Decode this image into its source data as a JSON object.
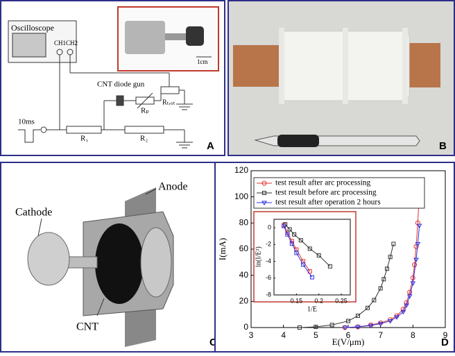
{
  "panels": {
    "a": {
      "label": "A",
      "oscilloscope": "Oscilloscope",
      "ch1": "CH1",
      "ch2": "CH2",
      "scale": "1cm",
      "gun": "CNT diode gun",
      "rp": "Rₚ",
      "rtest": "Rₜₑₛₜ",
      "pulse": "10ms",
      "r1": "R₁",
      "r2": "R₂"
    },
    "b": {
      "label": "B"
    },
    "c": {
      "label": "C",
      "anode": "Anode",
      "cathode": "Cathode",
      "cnt": "CNT"
    },
    "d": {
      "label": "D"
    }
  },
  "chart_data": {
    "type": "line",
    "xlabel": "E(V/μm)",
    "ylabel": "I(mA)",
    "xlim": [
      3,
      9
    ],
    "ylim": [
      0,
      120
    ],
    "xticks": [
      3,
      4,
      5,
      6,
      7,
      8,
      9
    ],
    "yticks": [
      0,
      20,
      40,
      60,
      80,
      100,
      120
    ],
    "series": [
      {
        "name": "test result after arc processing",
        "color": "#e03030",
        "marker": "circle",
        "x": [
          5.9,
          6.3,
          6.7,
          7.0,
          7.3,
          7.5,
          7.7,
          7.8,
          7.9,
          8.0,
          8.05,
          8.1,
          8.15,
          8.2
        ],
        "values": [
          0,
          0.5,
          2,
          3.5,
          6,
          9,
          14,
          19,
          27,
          38,
          48,
          62,
          80,
          104
        ]
      },
      {
        "name": "test result before arc processing",
        "color": "#303030",
        "marker": "square",
        "x": [
          4.5,
          5.0,
          5.5,
          6.0,
          6.3,
          6.6,
          6.8,
          7.0,
          7.1,
          7.2,
          7.3,
          7.4
        ],
        "values": [
          0,
          0.5,
          2,
          5,
          9,
          15,
          21,
          30,
          37,
          45,
          54,
          64
        ]
      },
      {
        "name": "test result after operation 2 hours",
        "color": "#3030e0",
        "marker": "triangle",
        "x": [
          5.9,
          6.3,
          6.7,
          7.0,
          7.3,
          7.5,
          7.7,
          7.8,
          7.9,
          8.0,
          8.1,
          8.15,
          8.2
        ],
        "values": [
          0,
          0.5,
          1.5,
          3,
          5,
          8,
          12,
          17,
          24,
          34,
          52,
          64,
          78
        ]
      }
    ],
    "inset": {
      "xlabel": "1/E",
      "ylabel": "ln(I/E²)",
      "xlim": [
        0.1,
        0.27
      ],
      "ylim": [
        -8,
        1
      ],
      "xticks": [
        0.15,
        0.2,
        0.25
      ],
      "yticks": [
        0,
        -2,
        -4,
        -6,
        -8
      ],
      "series": [
        {
          "color": "#e03030",
          "x": [
            0.122,
            0.13,
            0.14,
            0.15,
            0.165,
            0.18
          ],
          "values": [
            0.3,
            -0.6,
            -1.6,
            -2.6,
            -4,
            -5.2
          ]
        },
        {
          "color": "#303030",
          "x": [
            0.125,
            0.135,
            0.145,
            0.16,
            0.18,
            0.2,
            0.225
          ],
          "values": [
            0.4,
            -0.2,
            -0.8,
            -1.5,
            -2.5,
            -3.3,
            -4.6
          ]
        },
        {
          "color": "#3030e0",
          "x": [
            0.122,
            0.13,
            0.14,
            0.15,
            0.165,
            0.185
          ],
          "values": [
            0.2,
            -0.8,
            -1.9,
            -3,
            -4.4,
            -5.9
          ]
        }
      ]
    }
  }
}
